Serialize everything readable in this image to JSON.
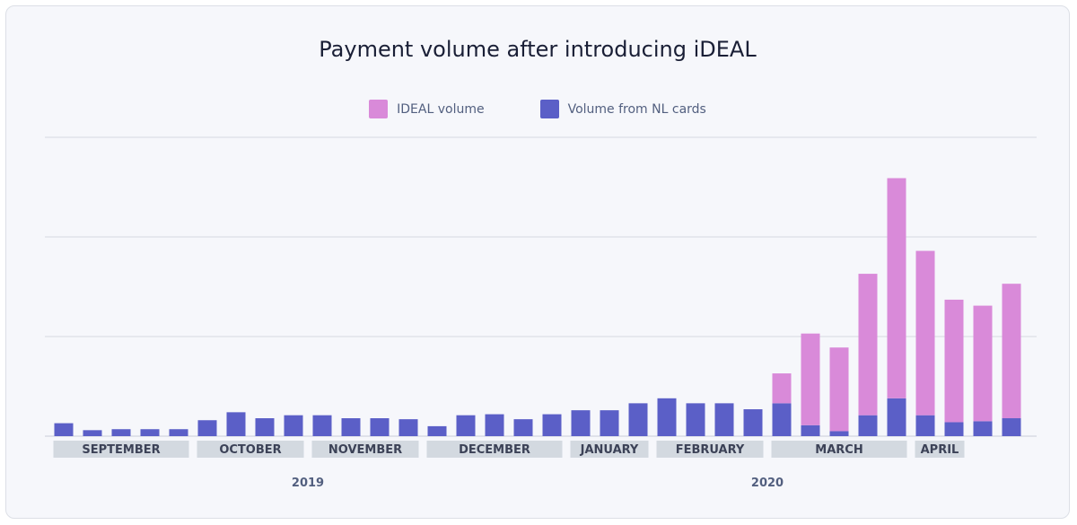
{
  "chart_data": {
    "type": "bar",
    "stacked": true,
    "title": "Payment volume after introducing iDEAL",
    "xlabel": "",
    "ylabel": "",
    "grid": true,
    "legend_position": "top-center",
    "series": [
      {
        "name": "Volume from NL cards",
        "color": "#5b5fc7",
        "values": [
          13,
          6,
          7,
          7,
          7,
          16,
          24,
          18,
          21,
          21,
          18,
          18,
          17,
          10,
          21,
          22,
          17,
          22,
          26,
          26,
          33,
          38,
          33,
          33,
          27,
          33,
          11,
          5,
          21,
          38,
          21,
          14,
          15,
          18
        ]
      },
      {
        "name": "IDEAL volume",
        "color": "#d98ad9",
        "values": [
          0,
          0,
          0,
          0,
          0,
          0,
          0,
          0,
          0,
          0,
          0,
          0,
          0,
          0,
          0,
          0,
          0,
          0,
          0,
          0,
          0,
          0,
          0,
          0,
          0,
          30,
          92,
          84,
          142,
          221,
          165,
          123,
          116,
          135
        ]
      }
    ],
    "ylim": [
      0,
      300
    ],
    "month_labels": [
      {
        "label": "SEPTEMBER",
        "start": 0,
        "end": 4
      },
      {
        "label": "OCTOBER",
        "start": 5,
        "end": 8
      },
      {
        "label": "NOVEMBER",
        "start": 9,
        "end": 12
      },
      {
        "label": "DECEMBER",
        "start": 13,
        "end": 17
      },
      {
        "label": "JANUARY",
        "start": 18,
        "end": 20
      },
      {
        "label": "FEBRUARY",
        "start": 21,
        "end": 24
      },
      {
        "label": "MARCH",
        "start": 25,
        "end": 29
      },
      {
        "label": "APRIL",
        "start": 30,
        "end": 31
      }
    ],
    "year_labels": [
      {
        "label": "2019",
        "center_index": 8.5
      },
      {
        "label": "2020",
        "center_index": 24.5
      }
    ]
  }
}
